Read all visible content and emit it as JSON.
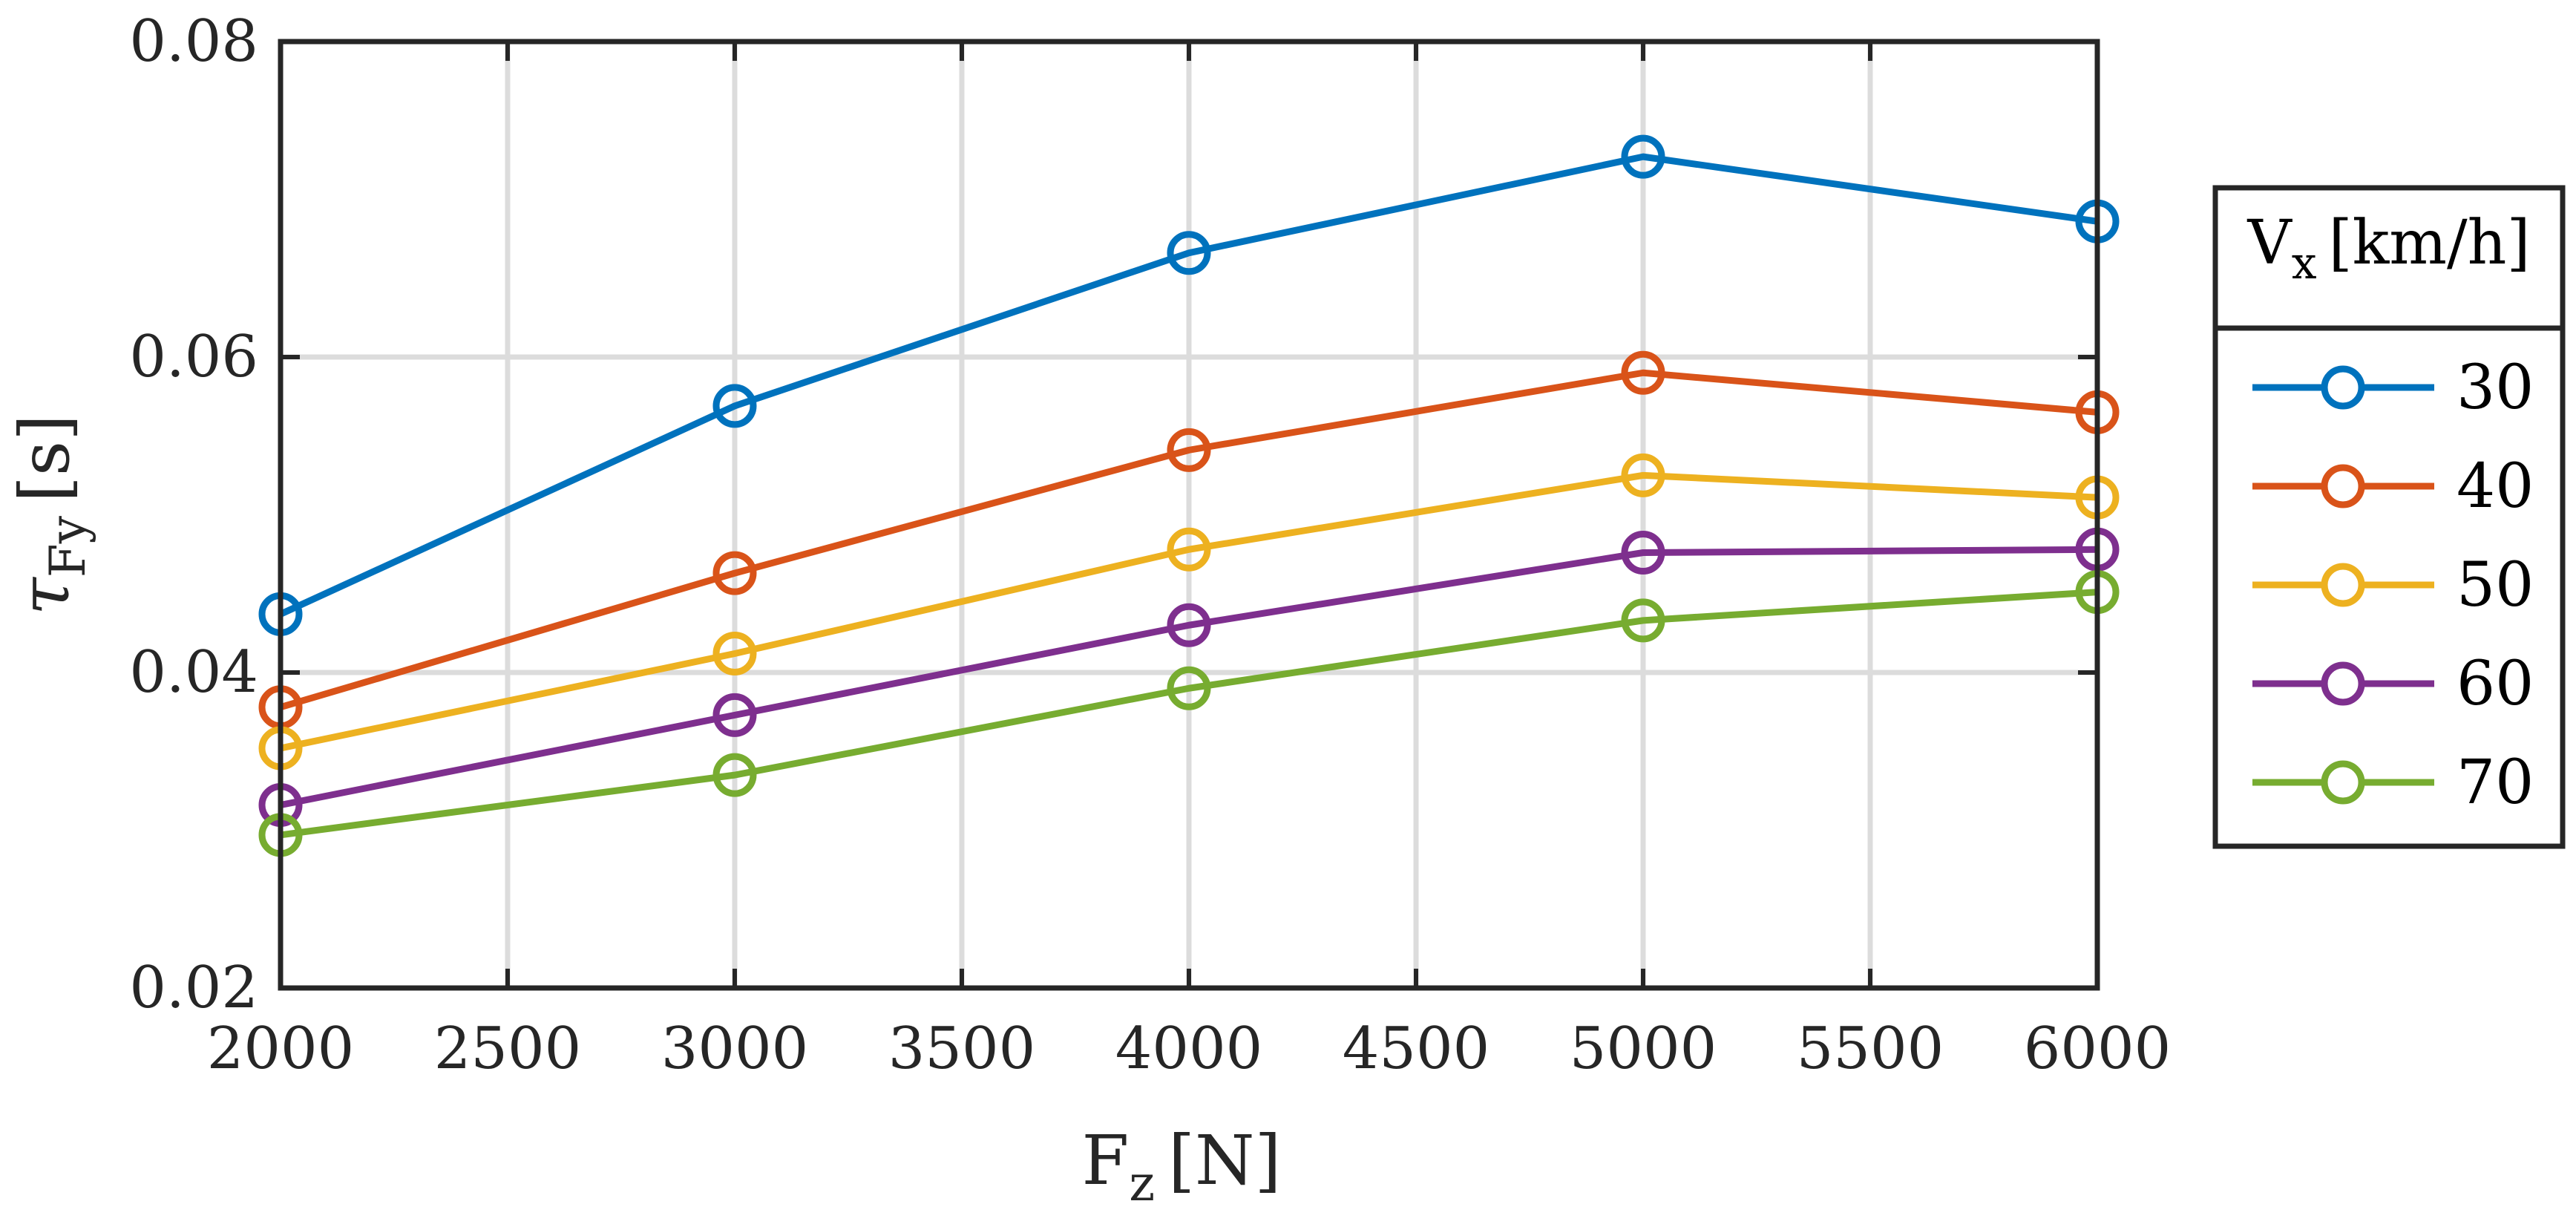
{
  "chart_data": {
    "type": "line",
    "xlabel": {
      "main": "F",
      "sub": "z",
      "unit": "[N]"
    },
    "ylabel": {
      "main": "τ",
      "sub": "Fy",
      "unit": "[s]"
    },
    "x": [
      2000,
      3000,
      4000,
      5000,
      6000
    ],
    "xlim": [
      2000,
      6000
    ],
    "ylim": [
      0.02,
      0.08
    ],
    "xticks": [
      2000,
      2500,
      3000,
      3500,
      4000,
      4500,
      5000,
      5500,
      6000
    ],
    "xtick_labels": [
      "2000",
      "2500",
      "3000",
      "3500",
      "4000",
      "4500",
      "5000",
      "5500",
      "6000"
    ],
    "yticks": [
      0.02,
      0.04,
      0.06,
      0.08
    ],
    "ytick_labels": [
      "0.02",
      "0.04",
      "0.06",
      "0.08"
    ],
    "grid": true,
    "legend": {
      "position": "right",
      "title": {
        "main": "V",
        "sub": "x",
        "unit": "[km/h]"
      }
    },
    "series": [
      {
        "name": "30",
        "color": "#0072BD",
        "values": [
          0.0437,
          0.0569,
          0.0666,
          0.0727,
          0.0686
        ]
      },
      {
        "name": "40",
        "color": "#D95319",
        "values": [
          0.0378,
          0.0463,
          0.0541,
          0.059,
          0.0565
        ]
      },
      {
        "name": "50",
        "color": "#EDB120",
        "values": [
          0.0352,
          0.0412,
          0.0478,
          0.0525,
          0.0511
        ]
      },
      {
        "name": "60",
        "color": "#7E2F8E",
        "values": [
          0.0316,
          0.0373,
          0.043,
          0.0476,
          0.0478
        ]
      },
      {
        "name": "70",
        "color": "#77AC30",
        "values": [
          0.0297,
          0.0335,
          0.039,
          0.0433,
          0.0451
        ]
      }
    ]
  }
}
